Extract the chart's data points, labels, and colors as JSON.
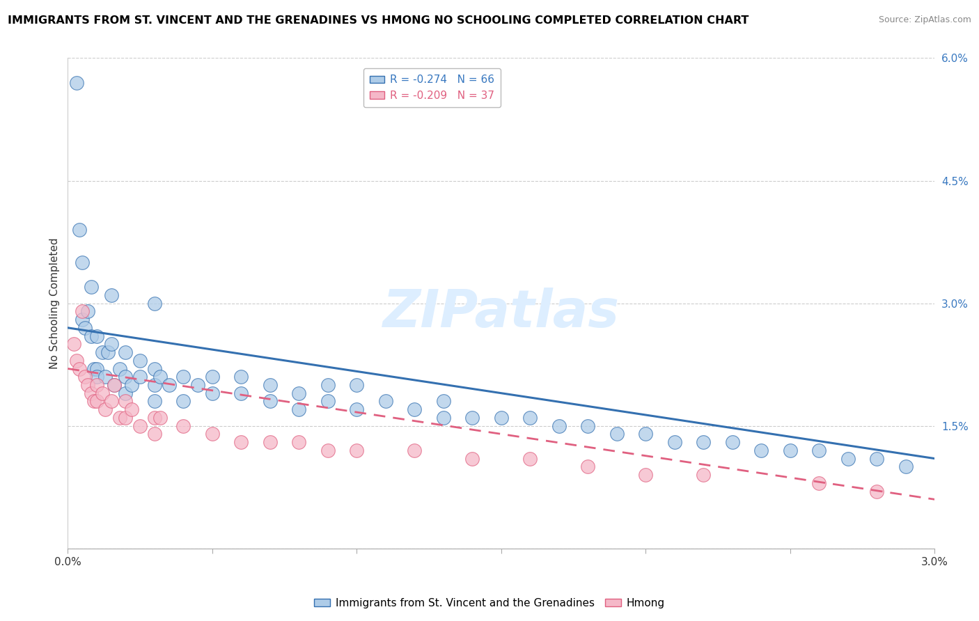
{
  "title": "IMMIGRANTS FROM ST. VINCENT AND THE GRENADINES VS HMONG NO SCHOOLING COMPLETED CORRELATION CHART",
  "source": "Source: ZipAtlas.com",
  "ylabel": "No Schooling Completed",
  "x_min": 0.0,
  "x_max": 0.03,
  "y_min": 0.0,
  "y_max": 0.06,
  "y_ticks": [
    0.0,
    0.015,
    0.03,
    0.045,
    0.06
  ],
  "y_tick_labels": [
    "",
    "1.5%",
    "3.0%",
    "4.5%",
    "6.0%"
  ],
  "x_ticks": [
    0.0,
    0.005,
    0.01,
    0.015,
    0.02,
    0.025,
    0.03
  ],
  "x_tick_labels": [
    "0.0%",
    "",
    "",
    "",
    "",
    "",
    "3.0%"
  ],
  "blue_R": -0.274,
  "blue_N": 66,
  "pink_R": -0.209,
  "pink_N": 37,
  "blue_color": "#aecce8",
  "pink_color": "#f5b8c8",
  "blue_line_color": "#3470b0",
  "pink_line_color": "#e06080",
  "legend_label_blue": "Immigrants from St. Vincent and the Grenadines",
  "legend_label_pink": "Hmong",
  "watermark": "ZIPatlas",
  "blue_line_x0": 0.0,
  "blue_line_y0": 0.027,
  "blue_line_x1": 0.03,
  "blue_line_y1": 0.011,
  "pink_line_x0": 0.0,
  "pink_line_y0": 0.022,
  "pink_line_x1": 0.03,
  "pink_line_y1": 0.006,
  "blue_pts_x": [
    0.0003,
    0.0004,
    0.0005,
    0.0005,
    0.0006,
    0.0007,
    0.0008,
    0.0008,
    0.0009,
    0.001,
    0.001,
    0.001,
    0.0012,
    0.0013,
    0.0014,
    0.0015,
    0.0016,
    0.0018,
    0.002,
    0.002,
    0.002,
    0.0022,
    0.0025,
    0.0025,
    0.003,
    0.003,
    0.003,
    0.0032,
    0.0035,
    0.004,
    0.004,
    0.0045,
    0.005,
    0.005,
    0.006,
    0.006,
    0.007,
    0.007,
    0.008,
    0.008,
    0.009,
    0.009,
    0.01,
    0.01,
    0.011,
    0.012,
    0.013,
    0.013,
    0.014,
    0.015,
    0.016,
    0.017,
    0.018,
    0.019,
    0.02,
    0.021,
    0.022,
    0.023,
    0.024,
    0.025,
    0.026,
    0.027,
    0.028,
    0.029,
    0.0015,
    0.003
  ],
  "blue_pts_y": [
    0.057,
    0.039,
    0.035,
    0.028,
    0.027,
    0.029,
    0.026,
    0.032,
    0.022,
    0.026,
    0.022,
    0.021,
    0.024,
    0.021,
    0.024,
    0.025,
    0.02,
    0.022,
    0.024,
    0.021,
    0.019,
    0.02,
    0.023,
    0.021,
    0.022,
    0.02,
    0.018,
    0.021,
    0.02,
    0.021,
    0.018,
    0.02,
    0.021,
    0.019,
    0.021,
    0.019,
    0.02,
    0.018,
    0.019,
    0.017,
    0.02,
    0.018,
    0.02,
    0.017,
    0.018,
    0.017,
    0.018,
    0.016,
    0.016,
    0.016,
    0.016,
    0.015,
    0.015,
    0.014,
    0.014,
    0.013,
    0.013,
    0.013,
    0.012,
    0.012,
    0.012,
    0.011,
    0.011,
    0.01,
    0.031,
    0.03
  ],
  "pink_pts_x": [
    0.0002,
    0.0003,
    0.0004,
    0.0005,
    0.0006,
    0.0007,
    0.0008,
    0.0009,
    0.001,
    0.001,
    0.0012,
    0.0013,
    0.0015,
    0.0016,
    0.0018,
    0.002,
    0.002,
    0.0022,
    0.0025,
    0.003,
    0.003,
    0.0032,
    0.004,
    0.005,
    0.006,
    0.007,
    0.008,
    0.009,
    0.01,
    0.012,
    0.014,
    0.016,
    0.018,
    0.02,
    0.022,
    0.026,
    0.028
  ],
  "pink_pts_y": [
    0.025,
    0.023,
    0.022,
    0.029,
    0.021,
    0.02,
    0.019,
    0.018,
    0.02,
    0.018,
    0.019,
    0.017,
    0.018,
    0.02,
    0.016,
    0.018,
    0.016,
    0.017,
    0.015,
    0.016,
    0.014,
    0.016,
    0.015,
    0.014,
    0.013,
    0.013,
    0.013,
    0.012,
    0.012,
    0.012,
    0.011,
    0.011,
    0.01,
    0.009,
    0.009,
    0.008,
    0.007
  ]
}
